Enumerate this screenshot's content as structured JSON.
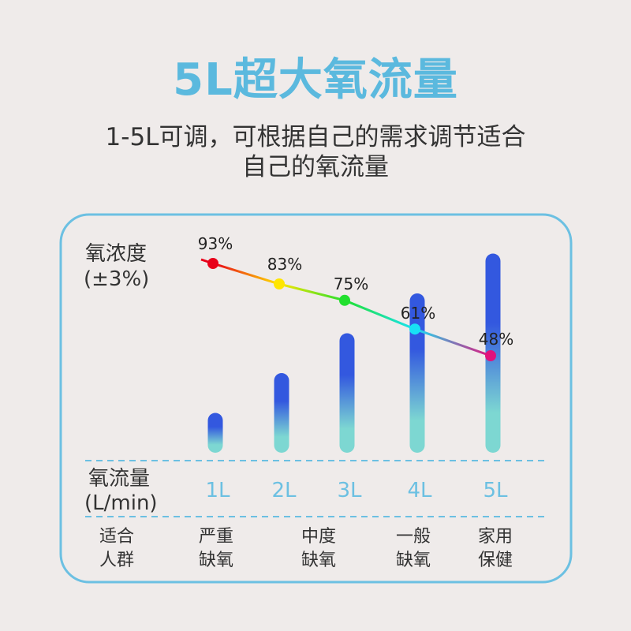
{
  "header": {
    "title": "5L超大氧流量",
    "subtitle_line1": "1-5L可调，可根据自己的需求调节适合",
    "subtitle_line2": "自己的氧流量"
  },
  "chart_data": {
    "type": "bar",
    "categories": [
      "1L",
      "2L",
      "3L",
      "4L",
      "5L"
    ],
    "flow_values_l_per_min": [
      1,
      2,
      3,
      4,
      5
    ],
    "concentration": {
      "values": [
        93,
        83,
        75,
        61,
        48
      ],
      "labels": [
        "93%",
        "83%",
        "75%",
        "61%",
        "48%"
      ],
      "point_colors": [
        "#e8001a",
        "#ffe600",
        "#22e02e",
        "#18e2f5",
        "#e2127c"
      ]
    },
    "ylabel_line1": "氧浓度",
    "ylabel_line2": "(±3%)",
    "xlabel_line1": "氧流量",
    "xlabel_line2": "(L/min)",
    "row_label_line1": "适合",
    "row_label_line2": "人群",
    "groups": [
      {
        "line1": "严重",
        "line2": "缺氧"
      },
      {
        "line1": "中度",
        "line2": "缺氧"
      },
      {
        "line1": "一般",
        "line2": "缺氧"
      },
      {
        "line1": "家用",
        "line2": "保健"
      }
    ],
    "colors": {
      "bar_top": "#3358df",
      "bar_bottom": "#7dd7d2",
      "frame": "#6cc0e2",
      "title": "#5bb9de"
    }
  }
}
